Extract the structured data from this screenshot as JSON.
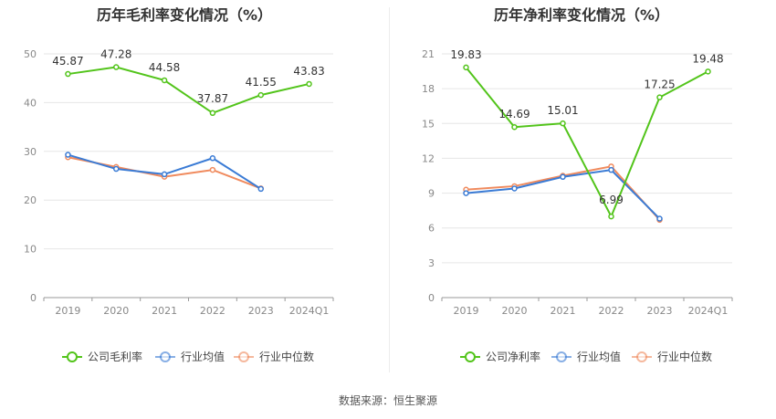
{
  "source_text": "数据来源：恒生聚源",
  "colors": {
    "company": "#52c41a",
    "industry_avg": "#3a7bd5",
    "industry_median": "#f08a5d"
  },
  "chart_data": [
    {
      "type": "line",
      "title": "历年毛利率变化情况（%）",
      "categories": [
        "2019",
        "2020",
        "2021",
        "2022",
        "2023",
        "2024Q1"
      ],
      "ylim": [
        0,
        50
      ],
      "yticks": [
        0,
        10,
        20,
        30,
        40,
        50
      ],
      "grid": true,
      "legend_position": "bottom",
      "series": [
        {
          "name": "公司毛利率",
          "values": [
            45.87,
            47.28,
            44.58,
            37.87,
            41.55,
            43.83
          ],
          "labels": [
            "45.87",
            "47.28",
            "44.58",
            "37.87",
            "41.55",
            "43.83"
          ]
        },
        {
          "name": "行业均值",
          "values": [
            29.3,
            26.4,
            25.3,
            28.6,
            22.3,
            null
          ]
        },
        {
          "name": "行业中位数",
          "values": [
            28.8,
            26.8,
            24.8,
            26.2,
            22.4,
            null
          ]
        }
      ]
    },
    {
      "type": "line",
      "title": "历年净利率变化情况（%）",
      "categories": [
        "2019",
        "2020",
        "2021",
        "2022",
        "2023",
        "2024Q1"
      ],
      "ylim": [
        0,
        21
      ],
      "yticks": [
        0,
        3,
        6,
        9,
        12,
        15,
        18,
        21
      ],
      "grid": true,
      "legend_position": "bottom",
      "series": [
        {
          "name": "公司净利率",
          "values": [
            19.83,
            14.69,
            15.01,
            6.99,
            17.25,
            19.48
          ],
          "labels": [
            "19.83",
            "14.69",
            "15.01",
            "6.99",
            "17.25",
            "19.48"
          ]
        },
        {
          "name": "行业均值",
          "values": [
            9.0,
            9.4,
            10.4,
            11.0,
            6.8,
            null
          ]
        },
        {
          "name": "行业中位数",
          "values": [
            9.3,
            9.6,
            10.5,
            11.3,
            6.7,
            null
          ]
        }
      ]
    }
  ]
}
